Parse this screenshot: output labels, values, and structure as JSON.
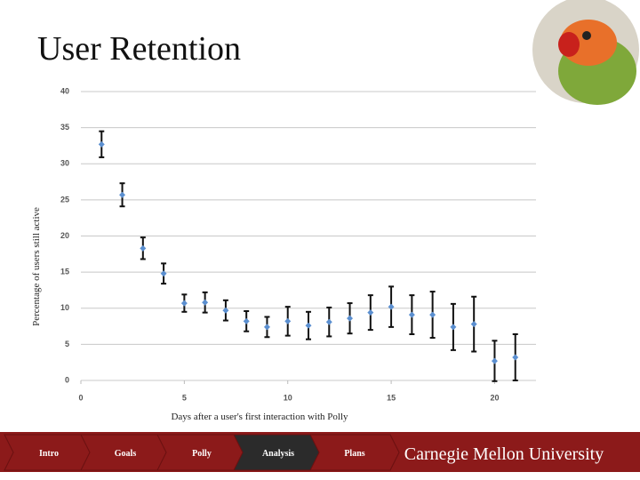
{
  "chart_data": {
    "type": "errorbar",
    "title": "User Retention",
    "x_label": "Days after a user's first interaction with Polly",
    "y_label": "Percentage of users still active",
    "x": [
      1,
      2,
      3,
      4,
      5,
      6,
      7,
      8,
      9,
      10,
      11,
      12,
      13,
      14,
      15,
      16,
      17,
      18,
      19,
      20,
      21
    ],
    "values": [
      32.7,
      25.7,
      18.3,
      14.8,
      10.7,
      10.8,
      9.7,
      8.2,
      7.4,
      8.2,
      7.6,
      8.1,
      8.6,
      9.4,
      10.2,
      9.1,
      9.1,
      7.4,
      7.8,
      2.7,
      3.2
    ],
    "errors": [
      1.8,
      1.6,
      1.5,
      1.4,
      1.2,
      1.4,
      1.4,
      1.4,
      1.4,
      2.0,
      1.9,
      2.0,
      2.1,
      2.4,
      2.8,
      2.7,
      3.2,
      3.2,
      3.8,
      2.8,
      3.2
    ],
    "color": "#5b8fd0",
    "xlim": [
      0,
      22
    ],
    "xticks": [
      0,
      5,
      10,
      15,
      20
    ],
    "ylim": [
      0,
      40
    ],
    "yticks": [
      0,
      5,
      10,
      15,
      20,
      25,
      30,
      35,
      40
    ],
    "grid": true
  },
  "nav": {
    "items": [
      "Intro",
      "Goals",
      "Polly",
      "Analysis",
      "Plans"
    ],
    "active": 3
  },
  "logo": "Carnegie Mellon University"
}
